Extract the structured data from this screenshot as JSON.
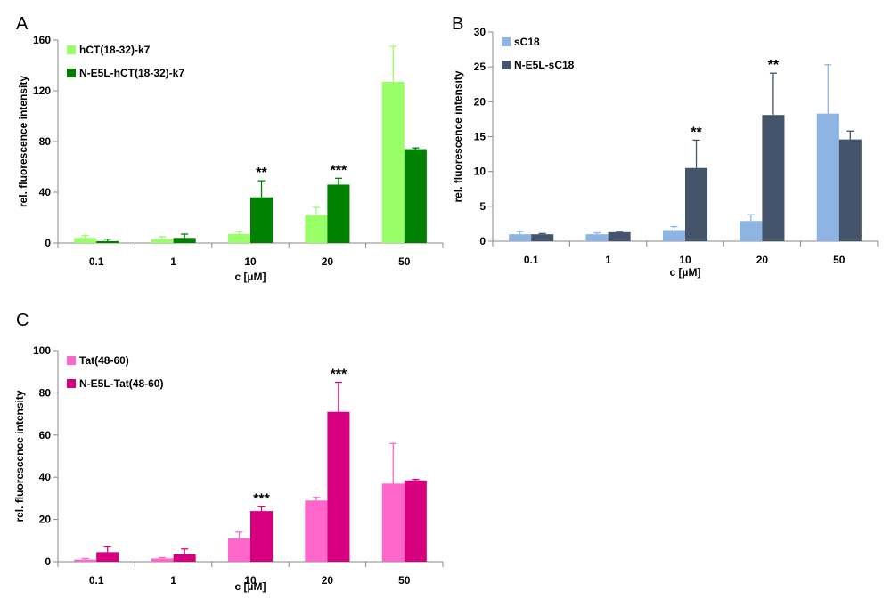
{
  "chart_data": [
    {
      "panel": "A",
      "type": "bar",
      "categories": [
        "0.1",
        "1",
        "10",
        "20",
        "50"
      ],
      "xlabel": "c [µM]",
      "ylabel": "rel. fluorescence intensity",
      "ylim": [
        0,
        160
      ],
      "yticks": [
        "0",
        "40",
        "80",
        "120",
        "160"
      ],
      "legend_position": "top-left",
      "series": [
        {
          "name": "hCT(18-32)-k7",
          "color": "#99ff66",
          "values": [
            4,
            3,
            7,
            22,
            127
          ],
          "errors": [
            2,
            2,
            2,
            6,
            28
          ]
        },
        {
          "name": "N-E5L-hCT(18-32)-k7",
          "color": "#008000",
          "values": [
            1.5,
            4,
            36,
            46,
            74
          ],
          "errors": [
            1.5,
            3,
            13,
            5,
            1
          ]
        }
      ],
      "annotations": [
        {
          "category": "10",
          "text": "**"
        },
        {
          "category": "20",
          "text": "***"
        }
      ]
    },
    {
      "panel": "B",
      "type": "bar",
      "categories": [
        "0.1",
        "1",
        "10",
        "20",
        "50"
      ],
      "xlabel": "c [µM]",
      "ylabel": "rel. fluorescence intensity",
      "ylim": [
        0,
        30
      ],
      "yticks": [
        "0",
        "5",
        "10",
        "15",
        "20",
        "25",
        "30"
      ],
      "legend_position": "top-left",
      "series": [
        {
          "name": "sC18",
          "color": "#8db4e2",
          "values": [
            1.0,
            1.0,
            1.6,
            2.9,
            18.3
          ],
          "errors": [
            0.4,
            0.2,
            0.5,
            0.9,
            7
          ]
        },
        {
          "name": "N-E5L-sC18",
          "color": "#44546a",
          "values": [
            1.0,
            1.3,
            10.5,
            18.1,
            14.6
          ],
          "errors": [
            0.1,
            0.1,
            4,
            6,
            1.2
          ]
        }
      ],
      "annotations": [
        {
          "category": "10",
          "text": "**"
        },
        {
          "category": "20",
          "text": "**"
        }
      ]
    },
    {
      "panel": "C",
      "type": "bar",
      "categories": [
        "0.1",
        "1",
        "10",
        "20",
        "50"
      ],
      "xlabel": "c [µM]",
      "ylabel": "rel. fluorescence intensity",
      "ylim": [
        0,
        100
      ],
      "yticks": [
        "0",
        "20",
        "40",
        "60",
        "80",
        "100"
      ],
      "legend_position": "top-left",
      "series": [
        {
          "name": "Tat(48-60)",
          "color": "#ff66cc",
          "values": [
            1,
            1.5,
            11,
            29,
            37
          ],
          "errors": [
            0.5,
            0.4,
            3,
            1.5,
            19
          ]
        },
        {
          "name": "N-E5L-Tat(48-60)",
          "color": "#d6007f",
          "values": [
            4.5,
            3.5,
            24,
            71,
            38.5
          ],
          "errors": [
            2.5,
            2.5,
            2,
            14,
            0.5
          ]
        }
      ],
      "annotations": [
        {
          "category": "10",
          "text": "***"
        },
        {
          "category": "20",
          "text": "***"
        }
      ]
    }
  ]
}
